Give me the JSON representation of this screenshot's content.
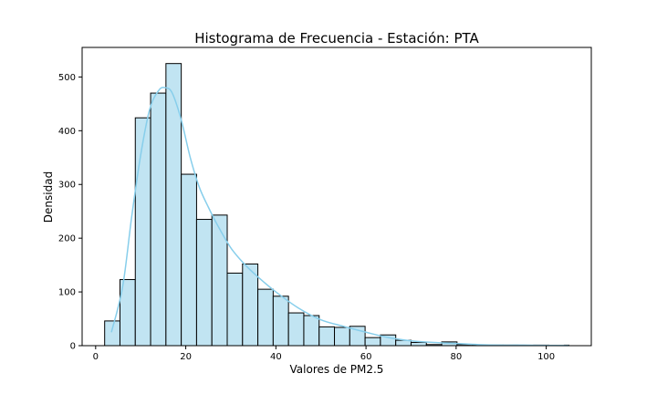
{
  "chart_data": {
    "type": "bar",
    "title": "Histograma de Frecuencia - Estación: PTA",
    "xlabel": "Valores de PM2.5",
    "ylabel": "Densidad",
    "xlim": [
      -3,
      110
    ],
    "ylim": [
      0,
      555
    ],
    "xticks": [
      0,
      20,
      40,
      60,
      80,
      100
    ],
    "yticks": [
      0,
      100,
      200,
      300,
      400,
      500
    ],
    "bar_color": "#c1e4f2",
    "edge_color": "#000000",
    "kde_color": "#87ceeb",
    "grid": false,
    "bin_width": 3.4,
    "bin_edges_start": 2,
    "bins": [
      {
        "x0": 2.0,
        "x1": 5.4,
        "count": 46
      },
      {
        "x0": 5.4,
        "x1": 8.8,
        "count": 123
      },
      {
        "x0": 8.8,
        "x1": 12.2,
        "count": 424
      },
      {
        "x0": 12.2,
        "x1": 15.6,
        "count": 470
      },
      {
        "x0": 15.6,
        "x1": 19.0,
        "count": 525
      },
      {
        "x0": 19.0,
        "x1": 22.4,
        "count": 319
      },
      {
        "x0": 22.4,
        "x1": 25.8,
        "count": 235
      },
      {
        "x0": 25.8,
        "x1": 29.2,
        "count": 243
      },
      {
        "x0": 29.2,
        "x1": 32.6,
        "count": 135
      },
      {
        "x0": 32.6,
        "x1": 36.0,
        "count": 152
      },
      {
        "x0": 36.0,
        "x1": 39.4,
        "count": 105
      },
      {
        "x0": 39.4,
        "x1": 42.8,
        "count": 92
      },
      {
        "x0": 42.8,
        "x1": 46.2,
        "count": 61
      },
      {
        "x0": 46.2,
        "x1": 49.6,
        "count": 56
      },
      {
        "x0": 49.6,
        "x1": 53.0,
        "count": 35
      },
      {
        "x0": 53.0,
        "x1": 56.4,
        "count": 34
      },
      {
        "x0": 56.4,
        "x1": 59.8,
        "count": 36
      },
      {
        "x0": 59.8,
        "x1": 63.2,
        "count": 15
      },
      {
        "x0": 63.2,
        "x1": 66.6,
        "count": 20
      },
      {
        "x0": 66.6,
        "x1": 70.0,
        "count": 10
      },
      {
        "x0": 70.0,
        "x1": 73.4,
        "count": 6
      },
      {
        "x0": 73.4,
        "x1": 76.8,
        "count": 2
      },
      {
        "x0": 76.8,
        "x1": 80.2,
        "count": 7
      },
      {
        "x0": 80.2,
        "x1": 83.6,
        "count": 2
      },
      {
        "x0": 83.6,
        "x1": 87.0,
        "count": 1
      },
      {
        "x0": 87.0,
        "x1": 90.4,
        "count": 1
      },
      {
        "x0": 90.4,
        "x1": 93.8,
        "count": 1
      },
      {
        "x0": 93.8,
        "x1": 97.2,
        "count": 0
      },
      {
        "x0": 97.2,
        "x1": 100.6,
        "count": 1
      },
      {
        "x0": 100.6,
        "x1": 104.0,
        "count": 0
      },
      {
        "x0": 104.0,
        "x1": 105.0,
        "count": 1
      }
    ],
    "kde": [
      {
        "x": 3.5,
        "y": 25
      },
      {
        "x": 6,
        "y": 110
      },
      {
        "x": 8,
        "y": 240
      },
      {
        "x": 10,
        "y": 355
      },
      {
        "x": 12,
        "y": 440
      },
      {
        "x": 14,
        "y": 475
      },
      {
        "x": 15.5,
        "y": 480
      },
      {
        "x": 17,
        "y": 470
      },
      {
        "x": 19,
        "y": 420
      },
      {
        "x": 21,
        "y": 350
      },
      {
        "x": 23,
        "y": 295
      },
      {
        "x": 25,
        "y": 258
      },
      {
        "x": 27,
        "y": 225
      },
      {
        "x": 30,
        "y": 182
      },
      {
        "x": 33,
        "y": 152
      },
      {
        "x": 36,
        "y": 128
      },
      {
        "x": 40,
        "y": 100
      },
      {
        "x": 45,
        "y": 70
      },
      {
        "x": 50,
        "y": 48
      },
      {
        "x": 55,
        "y": 36
      },
      {
        "x": 60,
        "y": 25
      },
      {
        "x": 65,
        "y": 15
      },
      {
        "x": 70,
        "y": 9
      },
      {
        "x": 75,
        "y": 6
      },
      {
        "x": 80,
        "y": 4
      },
      {
        "x": 85,
        "y": 2
      },
      {
        "x": 90,
        "y": 1
      },
      {
        "x": 95,
        "y": 1
      },
      {
        "x": 100,
        "y": 0.5
      },
      {
        "x": 105,
        "y": 0.3
      }
    ]
  }
}
